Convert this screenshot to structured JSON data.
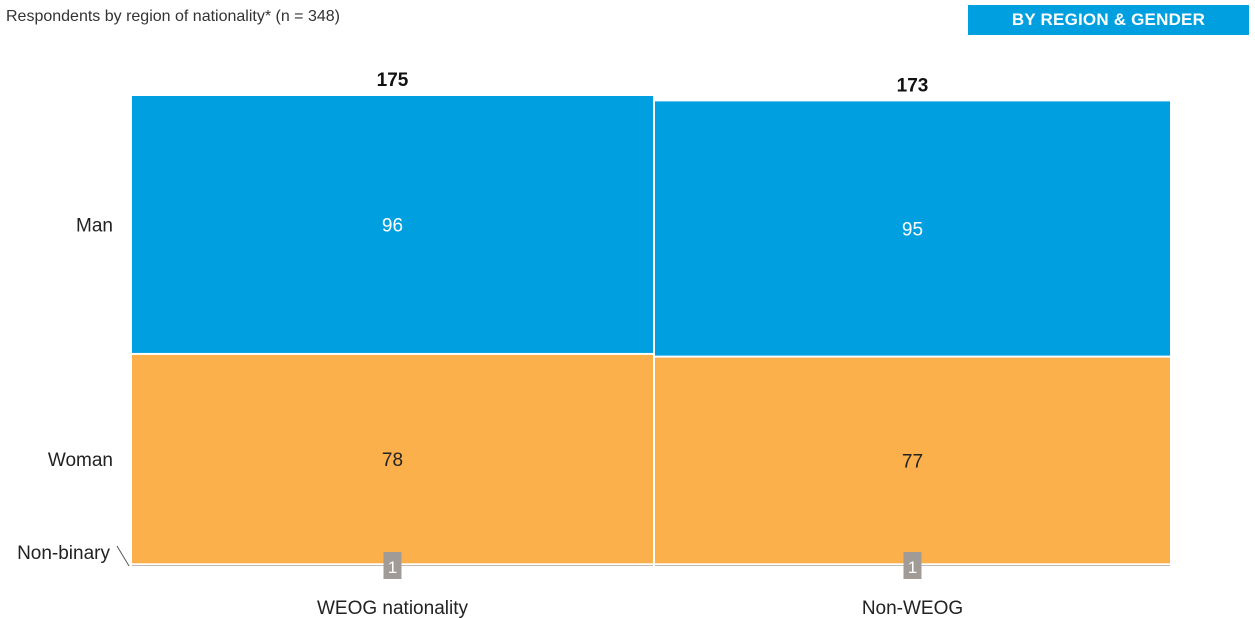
{
  "header": {
    "subtitle": "Respondents by region of nationality* (n = 348)",
    "badge": "BY REGION & GENDER"
  },
  "colors": {
    "Man": "#009fdf",
    "Woman": "#fbb04c",
    "Non-binary": "#a19b97",
    "separator": "#ffffff"
  },
  "chart_data": {
    "type": "bar",
    "stacked": true,
    "variable_width": true,
    "categories": [
      "WEOG nationality",
      "Non-WEOG"
    ],
    "totals": [
      175,
      173
    ],
    "series": [
      {
        "name": "Non-binary",
        "values": [
          1,
          1
        ]
      },
      {
        "name": "Woman",
        "values": [
          78,
          77
        ]
      },
      {
        "name": "Man",
        "values": [
          96,
          95
        ]
      }
    ],
    "legend": "left",
    "grid": false
  }
}
